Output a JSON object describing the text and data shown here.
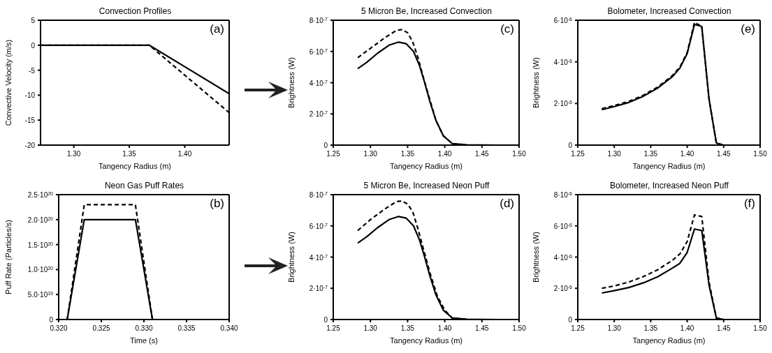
{
  "chart_data": [
    {
      "type": "line",
      "title": "Convection Profiles",
      "xlabel": "Tangency Radius (m)",
      "ylabel": "Convective Velocity (m/s)",
      "annotations": [
        "(a)"
      ],
      "xlim": [
        1.27,
        1.44
      ],
      "xticks": [
        {
          "value": 1.3,
          "label": "1.30"
        },
        {
          "value": 1.35,
          "label": "1.35"
        },
        {
          "value": 1.4,
          "label": "1.40"
        }
      ],
      "ylim": [
        -20,
        5
      ],
      "yticks": [
        -20,
        -15,
        -10,
        -5,
        0,
        5
      ],
      "series": [
        {
          "color": "#000000",
          "line_style": "solid",
          "x": [
            1.27,
            1.368,
            1.44
          ],
          "values": [
            0,
            0,
            -9.7
          ]
        },
        {
          "color": "#000000",
          "line_style": "dashed",
          "x": [
            1.27,
            1.368,
            1.44
          ],
          "values": [
            0,
            0,
            -13.5
          ]
        }
      ]
    },
    {
      "type": "line",
      "title": "5 Micron Be, Increased Convection",
      "xlabel": "Tangency Radius (m)",
      "ylabel": "Brightness (W)",
      "annotations": [
        "(c)"
      ],
      "xlim": [
        1.25,
        1.5
      ],
      "xticks": [
        {
          "value": 1.25,
          "label": "1.25"
        },
        {
          "value": 1.3,
          "label": "1.30"
        },
        {
          "value": 1.35,
          "label": "1.35"
        },
        {
          "value": 1.4,
          "label": "1.40"
        },
        {
          "value": 1.45,
          "label": "1.45"
        },
        {
          "value": 1.5,
          "label": "1.50"
        }
      ],
      "ylim": [
        0,
        8e-07
      ],
      "yticks": [
        0,
        {
          "value": 2e-07,
          "label": "2·10$^{-7}$"
        },
        {
          "value": 4e-07,
          "label": "4·10$^{-7}$"
        },
        {
          "value": 6e-07,
          "label": "6·10$^{-7}$"
        },
        {
          "value": 8e-07,
          "label": "8·10$^{-7}$"
        }
      ],
      "series": [
        {
          "color": "#000000",
          "line_style": "solid",
          "x": [
            1.283,
            1.295,
            1.31,
            1.325,
            1.338,
            1.348,
            1.358,
            1.366,
            1.373,
            1.38,
            1.388,
            1.398,
            1.41,
            1.43,
            1.47
          ],
          "values": [
            4.9e-07,
            5.3e-07,
            5.9e-07,
            6.4e-07,
            6.6e-07,
            6.5e-07,
            6e-07,
            5.1e-07,
            4e-07,
            2.8e-07,
            1.6e-07,
            6e-08,
            1e-08,
            2e-09,
            0
          ]
        },
        {
          "color": "#000000",
          "line_style": "dashed",
          "x": [
            1.283,
            1.3,
            1.32,
            1.335,
            1.342,
            1.35,
            1.357,
            1.364,
            1.372,
            1.38,
            1.388,
            1.398,
            1.41,
            1.43,
            1.47
          ],
          "values": [
            5.6e-07,
            6.2e-07,
            6.9e-07,
            7.35e-07,
            7.4e-07,
            7.2e-07,
            6.6e-07,
            5.6e-07,
            4.2e-07,
            2.9e-07,
            1.6e-07,
            6e-08,
            1e-08,
            0,
            0
          ]
        }
      ]
    },
    {
      "type": "line",
      "title": "Bolometer, Increased Convection",
      "xlabel": "Tangency Radius (m)",
      "ylabel": "Brightness (W)",
      "annotations": [
        "(e)"
      ],
      "xlim": [
        1.25,
        1.5
      ],
      "xticks": [
        {
          "value": 1.25,
          "label": "1.25"
        },
        {
          "value": 1.3,
          "label": "1.30"
        },
        {
          "value": 1.35,
          "label": "1.35"
        },
        {
          "value": 1.4,
          "label": "1.40"
        },
        {
          "value": 1.45,
          "label": "1.45"
        },
        {
          "value": 1.5,
          "label": "1.50"
        }
      ],
      "ylim": [
        0,
        6e-06
      ],
      "yticks": [
        0,
        {
          "value": 2e-06,
          "label": "2·10$^{-6}$"
        },
        {
          "value": 4e-06,
          "label": "4·10$^{-6}$"
        },
        {
          "value": 6e-06,
          "label": "6·10$^{-6}$"
        }
      ],
      "series": [
        {
          "color": "#000000",
          "line_style": "solid",
          "x": [
            1.283,
            1.3,
            1.32,
            1.34,
            1.36,
            1.38,
            1.39,
            1.4,
            1.41,
            1.42,
            1.43,
            1.44,
            1.45
          ],
          "values": [
            1.7e-06,
            1.85e-06,
            2.05e-06,
            2.35e-06,
            2.75e-06,
            3.3e-06,
            3.7e-06,
            4.4e-06,
            5.8e-06,
            5.7e-06,
            2.2e-06,
            1e-07,
            0
          ]
        },
        {
          "color": "#000000",
          "line_style": "dashed",
          "x": [
            1.283,
            1.3,
            1.32,
            1.34,
            1.36,
            1.38,
            1.39,
            1.4,
            1.41,
            1.42,
            1.43,
            1.44,
            1.45
          ],
          "values": [
            1.75e-06,
            1.9e-06,
            2.1e-06,
            2.4e-06,
            2.8e-06,
            3.35e-06,
            3.75e-06,
            4.45e-06,
            5.9e-06,
            5.7e-06,
            2.2e-06,
            1e-07,
            0
          ]
        }
      ]
    },
    {
      "type": "line",
      "title": "Neon Gas Puff Rates",
      "xlabel": "Time (s)",
      "ylabel": "Puff Rate (Particles/s)",
      "annotations": [
        "(b)"
      ],
      "xlim": [
        0.32,
        0.34
      ],
      "xticks": [
        {
          "value": 0.32,
          "label": "0.320"
        },
        {
          "value": 0.325,
          "label": "0.325"
        },
        {
          "value": 0.33,
          "label": "0.330"
        },
        {
          "value": 0.335,
          "label": "0.335"
        },
        {
          "value": 0.34,
          "label": "0.340"
        }
      ],
      "ylim": [
        0,
        2.5e+20
      ],
      "yticks": [
        0,
        {
          "value": 5e+19,
          "label": "5.0·10$^{19}$"
        },
        {
          "value": 1e+20,
          "label": "1.0·10$^{20}$"
        },
        {
          "value": 1.5e+20,
          "label": "1.5·10$^{20}$"
        },
        {
          "value": 2e+20,
          "label": "2.0·10$^{20}$"
        },
        {
          "value": 2.5e+20,
          "label": "2.5·10$^{20}$"
        }
      ],
      "series": [
        {
          "color": "#000000",
          "line_style": "solid",
          "x": [
            0.321,
            0.323,
            0.329,
            0.331,
            0.34
          ],
          "values": [
            0,
            2e+20,
            2e+20,
            0,
            0
          ]
        },
        {
          "color": "#000000",
          "line_style": "dashed",
          "x": [
            0.321,
            0.323,
            0.329,
            0.331,
            0.34
          ],
          "values": [
            0,
            2.3e+20,
            2.3e+20,
            0,
            0
          ]
        }
      ]
    },
    {
      "type": "line",
      "title": "5 Micron Be, Increased Neon Puff",
      "xlabel": "Tangency Radius (m)",
      "ylabel": "Brightness (W)",
      "annotations": [
        "(d)"
      ],
      "xlim": [
        1.25,
        1.5
      ],
      "xticks": [
        {
          "value": 1.25,
          "label": "1.25"
        },
        {
          "value": 1.3,
          "label": "1.30"
        },
        {
          "value": 1.35,
          "label": "1.35"
        },
        {
          "value": 1.4,
          "label": "1.40"
        },
        {
          "value": 1.45,
          "label": "1.45"
        },
        {
          "value": 1.5,
          "label": "1.50"
        }
      ],
      "ylim": [
        0,
        8e-07
      ],
      "yticks": [
        0,
        {
          "value": 2e-07,
          "label": "2·10$^{-7}$"
        },
        {
          "value": 4e-07,
          "label": "4·10$^{-7}$"
        },
        {
          "value": 6e-07,
          "label": "6·10$^{-7}$"
        },
        {
          "value": 8e-07,
          "label": "8·10$^{-7}$"
        }
      ],
      "series": [
        {
          "color": "#000000",
          "line_style": "solid",
          "x": [
            1.283,
            1.295,
            1.31,
            1.325,
            1.338,
            1.348,
            1.358,
            1.366,
            1.373,
            1.38,
            1.388,
            1.398,
            1.41,
            1.43,
            1.47
          ],
          "values": [
            4.9e-07,
            5.3e-07,
            5.9e-07,
            6.4e-07,
            6.6e-07,
            6.5e-07,
            6e-07,
            5.1e-07,
            4e-07,
            2.8e-07,
            1.6e-07,
            6e-08,
            1e-08,
            2e-09,
            0
          ]
        },
        {
          "color": "#000000",
          "line_style": "dashed",
          "x": [
            1.283,
            1.3,
            1.32,
            1.335,
            1.342,
            1.35,
            1.357,
            1.364,
            1.372,
            1.38,
            1.39,
            1.4,
            1.41,
            1.43,
            1.47
          ],
          "values": [
            5.7e-07,
            6.4e-07,
            7.1e-07,
            7.55e-07,
            7.6e-07,
            7.4e-07,
            6.9e-07,
            5.8e-07,
            4.4e-07,
            3e-07,
            1.5e-07,
            6e-08,
            1e-08,
            0,
            0
          ]
        }
      ]
    },
    {
      "type": "line",
      "title": "Bolometer, Increased Neon Puff",
      "xlabel": "Tangency Radius (m)",
      "ylabel": "Brightness (W)",
      "annotations": [
        "(f)"
      ],
      "xlim": [
        1.25,
        1.5
      ],
      "xticks": [
        {
          "value": 1.25,
          "label": "1.25"
        },
        {
          "value": 1.3,
          "label": "1.30"
        },
        {
          "value": 1.35,
          "label": "1.35"
        },
        {
          "value": 1.4,
          "label": "1.40"
        },
        {
          "value": 1.45,
          "label": "1.45"
        },
        {
          "value": 1.5,
          "label": "1.50"
        }
      ],
      "ylim": [
        0,
        8e-06
      ],
      "yticks": [
        0,
        {
          "value": 2e-06,
          "label": "2·10$^{-6}$"
        },
        {
          "value": 4e-06,
          "label": "4·10$^{-6}$"
        },
        {
          "value": 6e-06,
          "label": "6·10$^{-6}$"
        },
        {
          "value": 8e-06,
          "label": "8·10$^{-6}$"
        }
      ],
      "series": [
        {
          "color": "#000000",
          "line_style": "solid",
          "x": [
            1.283,
            1.3,
            1.32,
            1.34,
            1.36,
            1.38,
            1.39,
            1.4,
            1.41,
            1.42,
            1.43,
            1.44,
            1.45,
            1.46
          ],
          "values": [
            1.7e-06,
            1.85e-06,
            2.05e-06,
            2.35e-06,
            2.75e-06,
            3.3e-06,
            3.6e-06,
            4.3e-06,
            5.8e-06,
            5.7e-06,
            2.2e-06,
            1e-07,
            0,
            0
          ]
        },
        {
          "color": "#000000",
          "line_style": "dashed",
          "x": [
            1.283,
            1.3,
            1.32,
            1.34,
            1.36,
            1.38,
            1.39,
            1.4,
            1.41,
            1.42,
            1.43,
            1.44,
            1.45,
            1.46
          ],
          "values": [
            2e-06,
            2.15e-06,
            2.4e-06,
            2.75e-06,
            3.2e-06,
            3.8e-06,
            4.2e-06,
            5e-06,
            6.7e-06,
            6.6e-06,
            2.4e-06,
            1e-07,
            0,
            0
          ]
        }
      ]
    }
  ]
}
